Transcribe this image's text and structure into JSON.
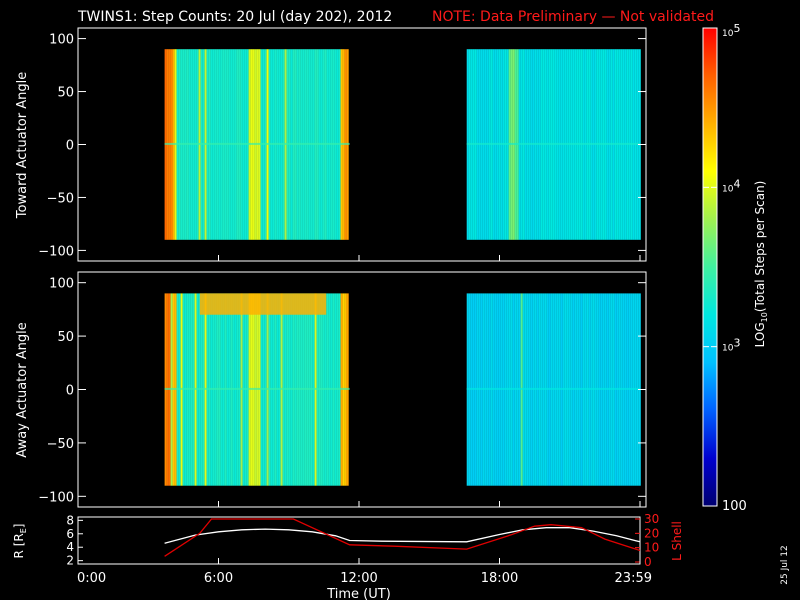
{
  "header": {
    "title": "TWINS1: Step Counts: 20 Jul (day 202), 2012",
    "note": "NOTE: Data Preliminary — Not validated"
  },
  "side_date": "25 Jul 12",
  "chart_data": [
    {
      "type": "heatmap",
      "ylabel": "Toward Actuator Angle",
      "ylim": [
        -110,
        110
      ],
      "yticks": [
        "100",
        "50",
        "0",
        "−50",
        "−100"
      ],
      "ytick_values": [
        100,
        50,
        0,
        -50,
        -100
      ],
      "data_y_range": [
        -90,
        90
      ],
      "x_unit": "hours UT",
      "data_blocks": [
        {
          "x_start": 3.7,
          "x_end": 11.6,
          "log10_counts_typical": 3.3
        },
        {
          "x_start": 16.6,
          "x_end": 24.0,
          "log10_counts_typical": 3.15
        }
      ],
      "grid": false
    },
    {
      "type": "heatmap",
      "ylabel": "Away Actuator Angle",
      "ylim": [
        -110,
        110
      ],
      "yticks": [
        "100",
        "50",
        "0",
        "−50",
        "−100"
      ],
      "ytick_values": [
        100,
        50,
        0,
        -50,
        -100
      ],
      "data_y_range": [
        -90,
        90
      ],
      "x_unit": "hours UT",
      "data_blocks": [
        {
          "x_start": 3.7,
          "x_end": 11.6,
          "log10_counts_typical": 3.3
        },
        {
          "x_start": 16.6,
          "x_end": 24.0,
          "log10_counts_typical": 3.05
        }
      ],
      "grid": false
    },
    {
      "type": "line",
      "xlabel": "Time (UT)",
      "xlim": [
        0,
        24
      ],
      "xticks": [
        "0:00",
        "6:00",
        "12:00",
        "18:00",
        "23:59"
      ],
      "xtick_values": [
        0,
        6,
        12,
        18,
        24
      ],
      "ylabel_left": "R [R",
      "ylabel_left_sub": "E",
      "ylabel_left_close": "]",
      "ylim_left": [
        1.5,
        8.5
      ],
      "yticks_left": [
        "8",
        "6",
        "4",
        "2"
      ],
      "ytick_values_left": [
        8,
        6,
        4,
        2
      ],
      "ylabel_right": "L Shell",
      "ylim_right": [
        0,
        30
      ],
      "yticks_right": [
        "30",
        "20",
        "10",
        "0"
      ],
      "ytick_values_right": [
        30,
        20,
        10,
        0
      ],
      "series": [
        {
          "axis": "left",
          "color": "#ffffff",
          "x": [
            3.7,
            5,
            6,
            7,
            8,
            9,
            10,
            11,
            11.6,
            13,
            16.6,
            18,
            19,
            20,
            21,
            22,
            23,
            24
          ],
          "y": [
            4.6,
            5.8,
            6.3,
            6.6,
            6.7,
            6.6,
            6.3,
            5.7,
            5.0,
            4.9,
            4.8,
            5.9,
            6.6,
            6.9,
            6.9,
            6.4,
            5.7,
            4.8
          ]
        },
        {
          "axis": "right",
          "color": "#e00000",
          "x": [
            3.7,
            5.2,
            5.7,
            9.2,
            11.6,
            13.5,
            16.6,
            18.5,
            19.5,
            20.2,
            21.5,
            22.5,
            24
          ],
          "y": [
            4,
            20,
            30,
            30,
            12,
            11,
            9,
            19,
            25,
            26,
            24,
            16,
            8
          ]
        }
      ]
    }
  ],
  "colorbar": {
    "label": "LOG",
    "label_sub": "10",
    "label_rest": "(Total Steps per Scan)",
    "range_log10": [
      2,
      5
    ],
    "ticks": [
      {
        "base": "10",
        "exp": "5",
        "value": 5
      },
      {
        "base": "10",
        "exp": "4",
        "value": 4
      },
      {
        "base": "10",
        "exp": "3",
        "value": 3
      },
      {
        "base": "100",
        "exp": "",
        "value": 2
      }
    ],
    "colors": [
      "#000070",
      "#0000d0",
      "#0060ff",
      "#00c0ff",
      "#00e8e0",
      "#40f0a0",
      "#a0f050",
      "#ffff00",
      "#ffb000",
      "#ff6000",
      "#ff0000"
    ]
  }
}
